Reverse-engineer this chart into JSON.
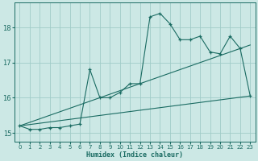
{
  "xlabel": "Humidex (Indice chaleur)",
  "bg_color": "#cce8e5",
  "grid_color": "#a0ccc8",
  "line_color": "#1a6b62",
  "xlim": [
    -0.5,
    23.5
  ],
  "ylim": [
    14.75,
    18.7
  ],
  "yticks": [
    15,
    16,
    17,
    18
  ],
  "xticks": [
    0,
    1,
    2,
    3,
    4,
    5,
    6,
    7,
    8,
    9,
    10,
    11,
    12,
    13,
    14,
    15,
    16,
    17,
    18,
    19,
    20,
    21,
    22,
    23
  ],
  "curve_x": [
    0,
    1,
    2,
    3,
    4,
    5,
    6,
    7,
    8,
    9,
    10,
    11,
    12,
    13,
    14,
    15,
    16,
    17,
    18,
    19,
    20,
    21,
    22,
    23
  ],
  "curve_y": [
    15.2,
    15.1,
    15.1,
    15.15,
    15.15,
    15.2,
    15.25,
    16.8,
    16.0,
    16.0,
    16.15,
    16.4,
    16.4,
    18.3,
    18.4,
    18.1,
    17.65,
    17.65,
    17.75,
    17.3,
    17.25,
    17.75,
    17.4,
    16.05
  ],
  "trend1_x": [
    0,
    23
  ],
  "trend1_y": [
    15.2,
    16.05
  ],
  "trend2_x": [
    0,
    23
  ],
  "trend2_y": [
    15.2,
    17.5
  ]
}
